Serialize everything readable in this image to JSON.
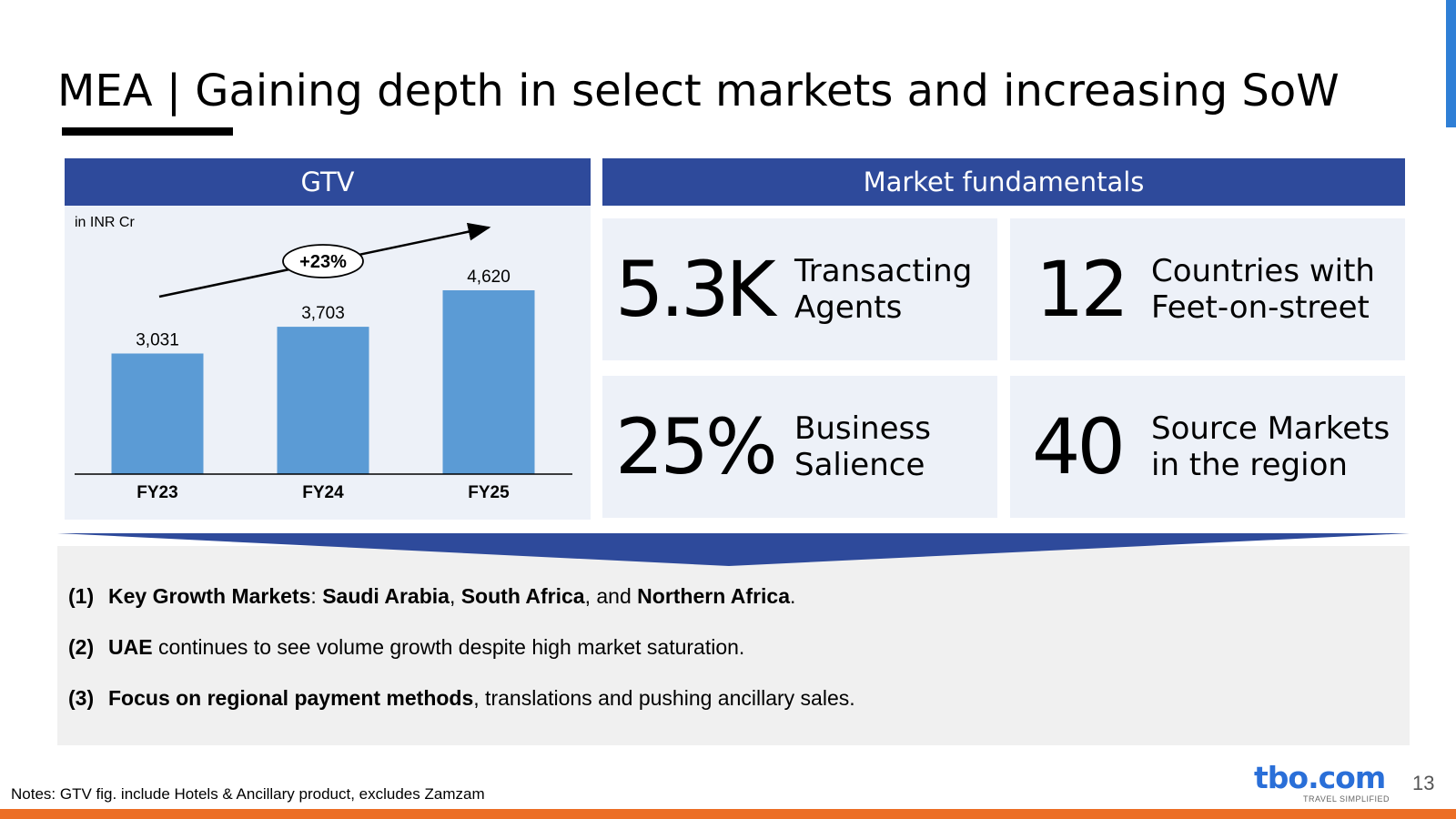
{
  "title": "MEA | Gaining depth in select markets and increasing SoW",
  "gtv": {
    "header": "GTV",
    "unit": "in INR Cr",
    "growth_label": "+23%"
  },
  "chart_data": {
    "type": "bar",
    "title": "GTV",
    "categories": [
      "FY23",
      "FY24",
      "FY25"
    ],
    "values": [
      3031,
      3703,
      4620
    ],
    "value_labels": [
      "3,031",
      "3,703",
      "4,620"
    ],
    "ylabel": "in INR Cr",
    "ylim": [
      0,
      4620
    ],
    "annotation": "+23%",
    "bar_color": "#5b9bd5"
  },
  "market": {
    "header": "Market fundamentals",
    "cards": [
      {
        "value": "5.3K",
        "line1": "Transacting",
        "line2": "Agents"
      },
      {
        "value": "12",
        "line1": "Countries with",
        "line2": "Feet-on-street"
      },
      {
        "value": "25%",
        "line1": "Business",
        "line2": "Salience"
      },
      {
        "value": "40",
        "line1": "Source Markets",
        "line2": "in the region"
      }
    ]
  },
  "points": [
    {
      "num": "(1)",
      "bold1": "Key Growth Markets",
      "t1": ": ",
      "bold2": "Saudi Arabia",
      "t2": ", ",
      "bold3": "South Africa",
      "t3": ", and ",
      "bold4": "Northern Africa",
      "t4": "."
    },
    {
      "num": "(2)",
      "bold1": "UAE",
      "t1": " continues to see volume growth despite high market saturation."
    },
    {
      "num": "(3)",
      "bold1": "Focus on regional payment methods",
      "t1": ", translations and pushing ancillary sales."
    }
  ],
  "footnote": "Notes: GTV fig. include Hotels & Ancillary product, excludes Zamzam",
  "logo": {
    "text": "tbo.com",
    "tagline": "TRAVEL SIMPLIFIED"
  },
  "page_number": "13",
  "colors": {
    "header": "#2e4a9b",
    "panel": "#edf1f8",
    "bar": "#5b9bd5",
    "bottom_bar": "#ec6e25",
    "logo": "#2a6fd8"
  }
}
